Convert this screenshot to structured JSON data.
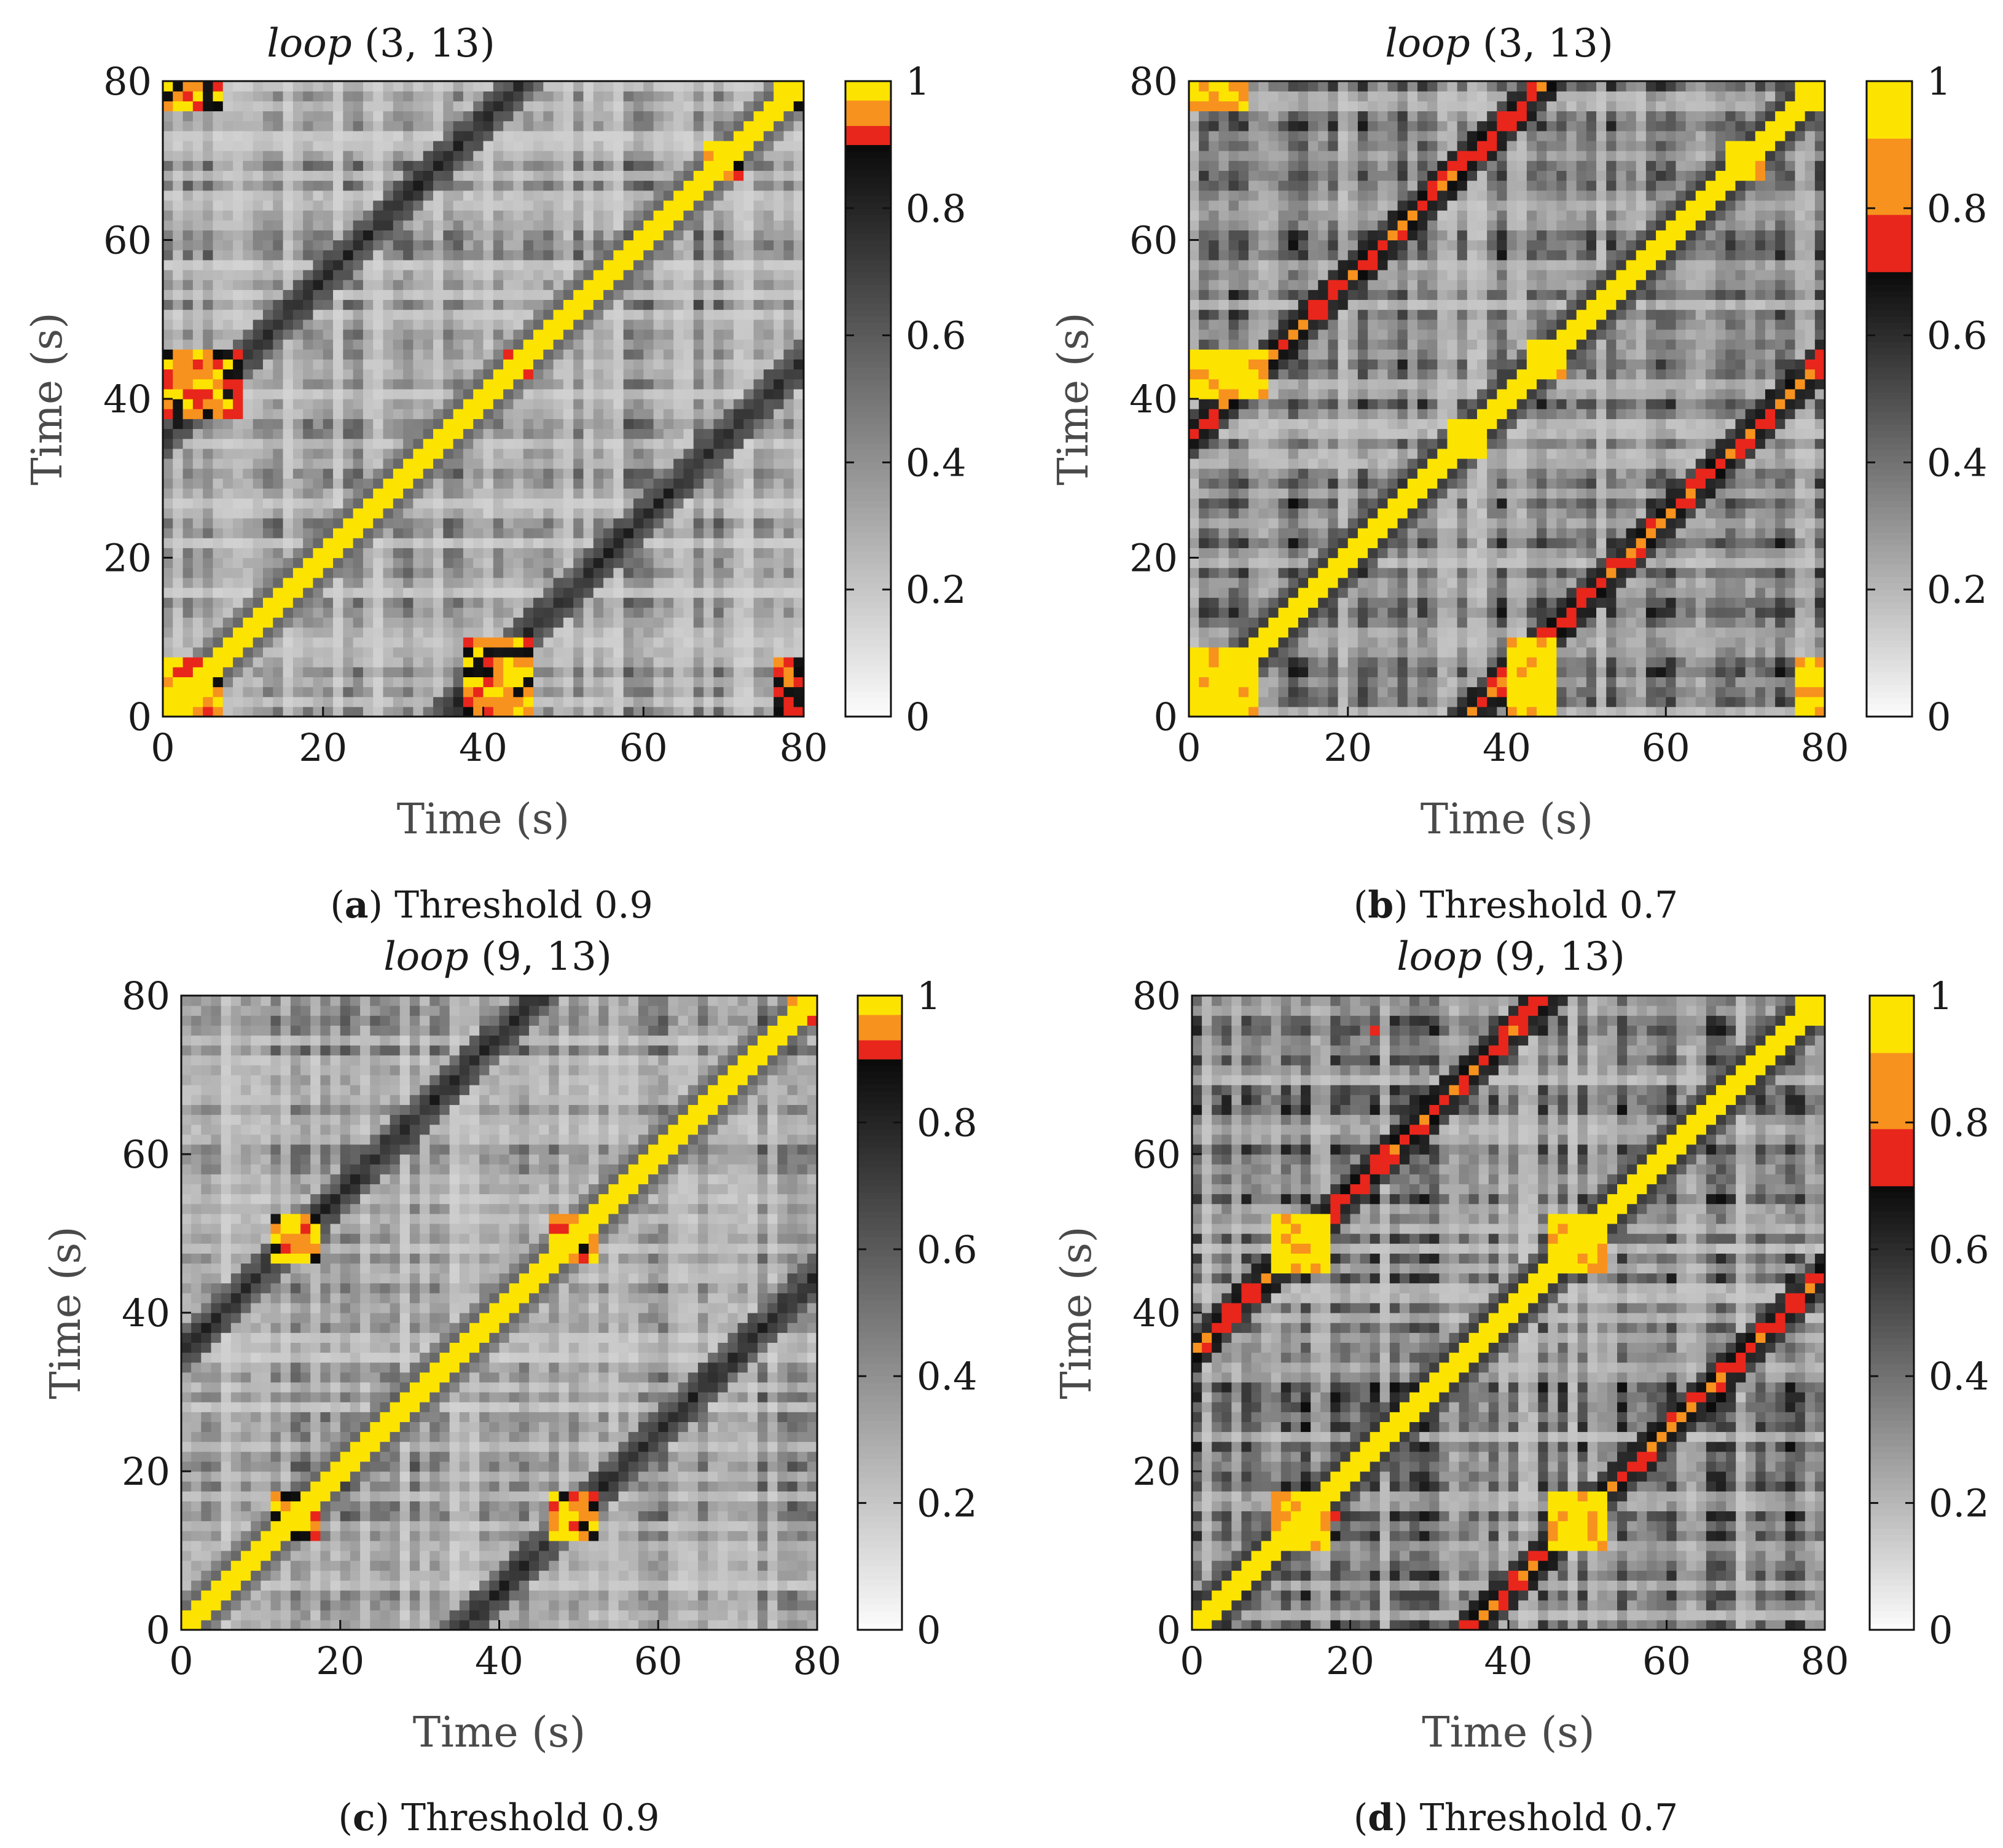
{
  "figure": {
    "panels": [
      {
        "id": "a",
        "title": {
          "italic": "loop",
          "rest": " (3, 13)"
        },
        "caption": {
          "letter": "a",
          "text": " Threshold 0.9"
        },
        "threshold": 0.9,
        "xlabel": "Time (s)",
        "ylabel": "Time (s)",
        "xticks": [
          "0",
          "20",
          "40",
          "60",
          "80"
        ],
        "yticks": [
          "0",
          "20",
          "40",
          "60",
          "80"
        ],
        "cbar_ticks": [
          "0",
          "0.2",
          "0.4",
          "0.6",
          "0.8",
          "1"
        ]
      },
      {
        "id": "b",
        "title": {
          "italic": "loop",
          "rest": " (3, 13)"
        },
        "caption": {
          "letter": "b",
          "text": " Threshold 0.7"
        },
        "threshold": 0.7,
        "xlabel": "Time (s)",
        "ylabel": "Time (s)",
        "xticks": [
          "0",
          "20",
          "40",
          "60",
          "80"
        ],
        "yticks": [
          "0",
          "20",
          "40",
          "60",
          "80"
        ],
        "cbar_ticks": [
          "0",
          "0.2",
          "0.4",
          "0.6",
          "0.8",
          "1"
        ]
      },
      {
        "id": "c",
        "title": {
          "italic": "loop",
          "rest": " (9, 13)"
        },
        "caption": {
          "letter": "c",
          "text": " Threshold 0.9"
        },
        "threshold": 0.9,
        "xlabel": "Time (s)",
        "ylabel": "Time (s)",
        "xticks": [
          "0",
          "20",
          "40",
          "60",
          "80"
        ],
        "yticks": [
          "0",
          "20",
          "40",
          "60",
          "80"
        ],
        "cbar_ticks": [
          "0",
          "0.2",
          "0.4",
          "0.6",
          "0.8",
          "1"
        ]
      },
      {
        "id": "d",
        "title": {
          "italic": "loop",
          "rest": " (9, 13)"
        },
        "caption": {
          "letter": "d",
          "text": " Threshold 0.7"
        },
        "threshold": 0.7,
        "xlabel": "Time (s)",
        "ylabel": "Time (s)",
        "xticks": [
          "0",
          "20",
          "40",
          "60",
          "80"
        ],
        "yticks": [
          "0",
          "20",
          "40",
          "60",
          "80"
        ],
        "cbar_ticks": [
          "0",
          "0.2",
          "0.4",
          "0.6",
          "0.8",
          "1"
        ]
      }
    ]
  },
  "chart_data": [
    {
      "type": "heatmap",
      "title": "loop (3, 13)",
      "subtitle": "(a) Threshold 0.9",
      "xlabel": "Time (s)",
      "ylabel": "Time (s)",
      "xlim": [
        0,
        80
      ],
      "ylim": [
        0,
        80
      ],
      "colorbar": {
        "range": [
          0,
          1
        ],
        "threshold": 0.9,
        "ticks": [
          0,
          0.2,
          0.4,
          0.6,
          0.8,
          1
        ]
      },
      "description_values": {
        "matrix": "self-similarity matrix, symmetric about diagonal",
        "blocks": [
          [
            0,
            8
          ],
          [
            35,
            38
          ],
          [
            43,
            46
          ],
          [
            68,
            72
          ],
          [
            76,
            80
          ]
        ],
        "off_diagonal_blocks": [
          [
            [
              0,
              8
            ],
            [
              40,
              46
            ]
          ],
          [
            [
              0,
              8
            ],
            [
              76,
              80
            ]
          ],
          [
            [
              38,
              46
            ],
            [
              0,
              10
            ]
          ]
        ]
      }
    },
    {
      "type": "heatmap",
      "title": "loop (3, 13)",
      "subtitle": "(b) Threshold 0.7",
      "xlabel": "Time (s)",
      "ylabel": "Time (s)",
      "xlim": [
        0,
        80
      ],
      "ylim": [
        0,
        80
      ],
      "colorbar": {
        "range": [
          0,
          1
        ],
        "threshold": 0.7,
        "ticks": [
          0,
          0.2,
          0.4,
          0.6,
          0.8,
          1
        ]
      },
      "description_values": {
        "matrix": "self-similarity matrix, symmetric about diagonal",
        "blocks": [
          [
            0,
            9
          ],
          [
            33,
            38
          ],
          [
            43,
            47
          ],
          [
            67,
            72
          ],
          [
            76,
            80
          ]
        ],
        "off_diagonal_blocks": [
          [
            [
              0,
              9
            ],
            [
              40,
              46
            ]
          ],
          [
            [
              0,
              8
            ],
            [
              76,
              80
            ]
          ],
          [
            [
              40,
              46
            ],
            [
              0,
              10
            ]
          ]
        ]
      }
    },
    {
      "type": "heatmap",
      "title": "loop (9, 13)",
      "subtitle": "(c) Threshold 0.9",
      "xlabel": "Time (s)",
      "ylabel": "Time (s)",
      "xlim": [
        0,
        80
      ],
      "ylim": [
        0,
        80
      ],
      "colorbar": {
        "range": [
          0,
          1
        ],
        "threshold": 0.9,
        "ticks": [
          0,
          0.2,
          0.4,
          0.6,
          0.8,
          1
        ]
      },
      "description_values": {
        "matrix": "self-similarity matrix, symmetric about diagonal",
        "blocks": [
          [
            11,
            17
          ],
          [
            46,
            52
          ],
          [
            76,
            80
          ]
        ],
        "off_diagonal_blocks": [
          [
            [
              11,
              17
            ],
            [
              46,
              52
            ]
          ],
          [
            [
              46,
              52
            ],
            [
              11,
              17
            ]
          ]
        ]
      }
    },
    {
      "type": "heatmap",
      "title": "loop (9, 13)",
      "subtitle": "(d) Threshold 0.7",
      "xlabel": "Time (s)",
      "ylabel": "Time (s)",
      "xlim": [
        0,
        80
      ],
      "ylim": [
        0,
        80
      ],
      "colorbar": {
        "range": [
          0,
          1
        ],
        "threshold": 0.7,
        "ticks": [
          0,
          0.2,
          0.4,
          0.6,
          0.8,
          1
        ]
      },
      "description_values": {
        "matrix": "self-similarity matrix, symmetric about diagonal",
        "blocks": [
          [
            10,
            18
          ],
          [
            45,
            53
          ],
          [
            76,
            80
          ]
        ],
        "off_diagonal_blocks": [
          [
            [
              10,
              18
            ],
            [
              45,
              53
            ]
          ],
          [
            [
              45,
              53
            ],
            [
              10,
              18
            ]
          ]
        ]
      }
    }
  ],
  "colors": {
    "white": "#ffffff",
    "black": "#111111",
    "red": "#e8261c",
    "orange": "#f7921e",
    "yellow": "#fde400"
  }
}
